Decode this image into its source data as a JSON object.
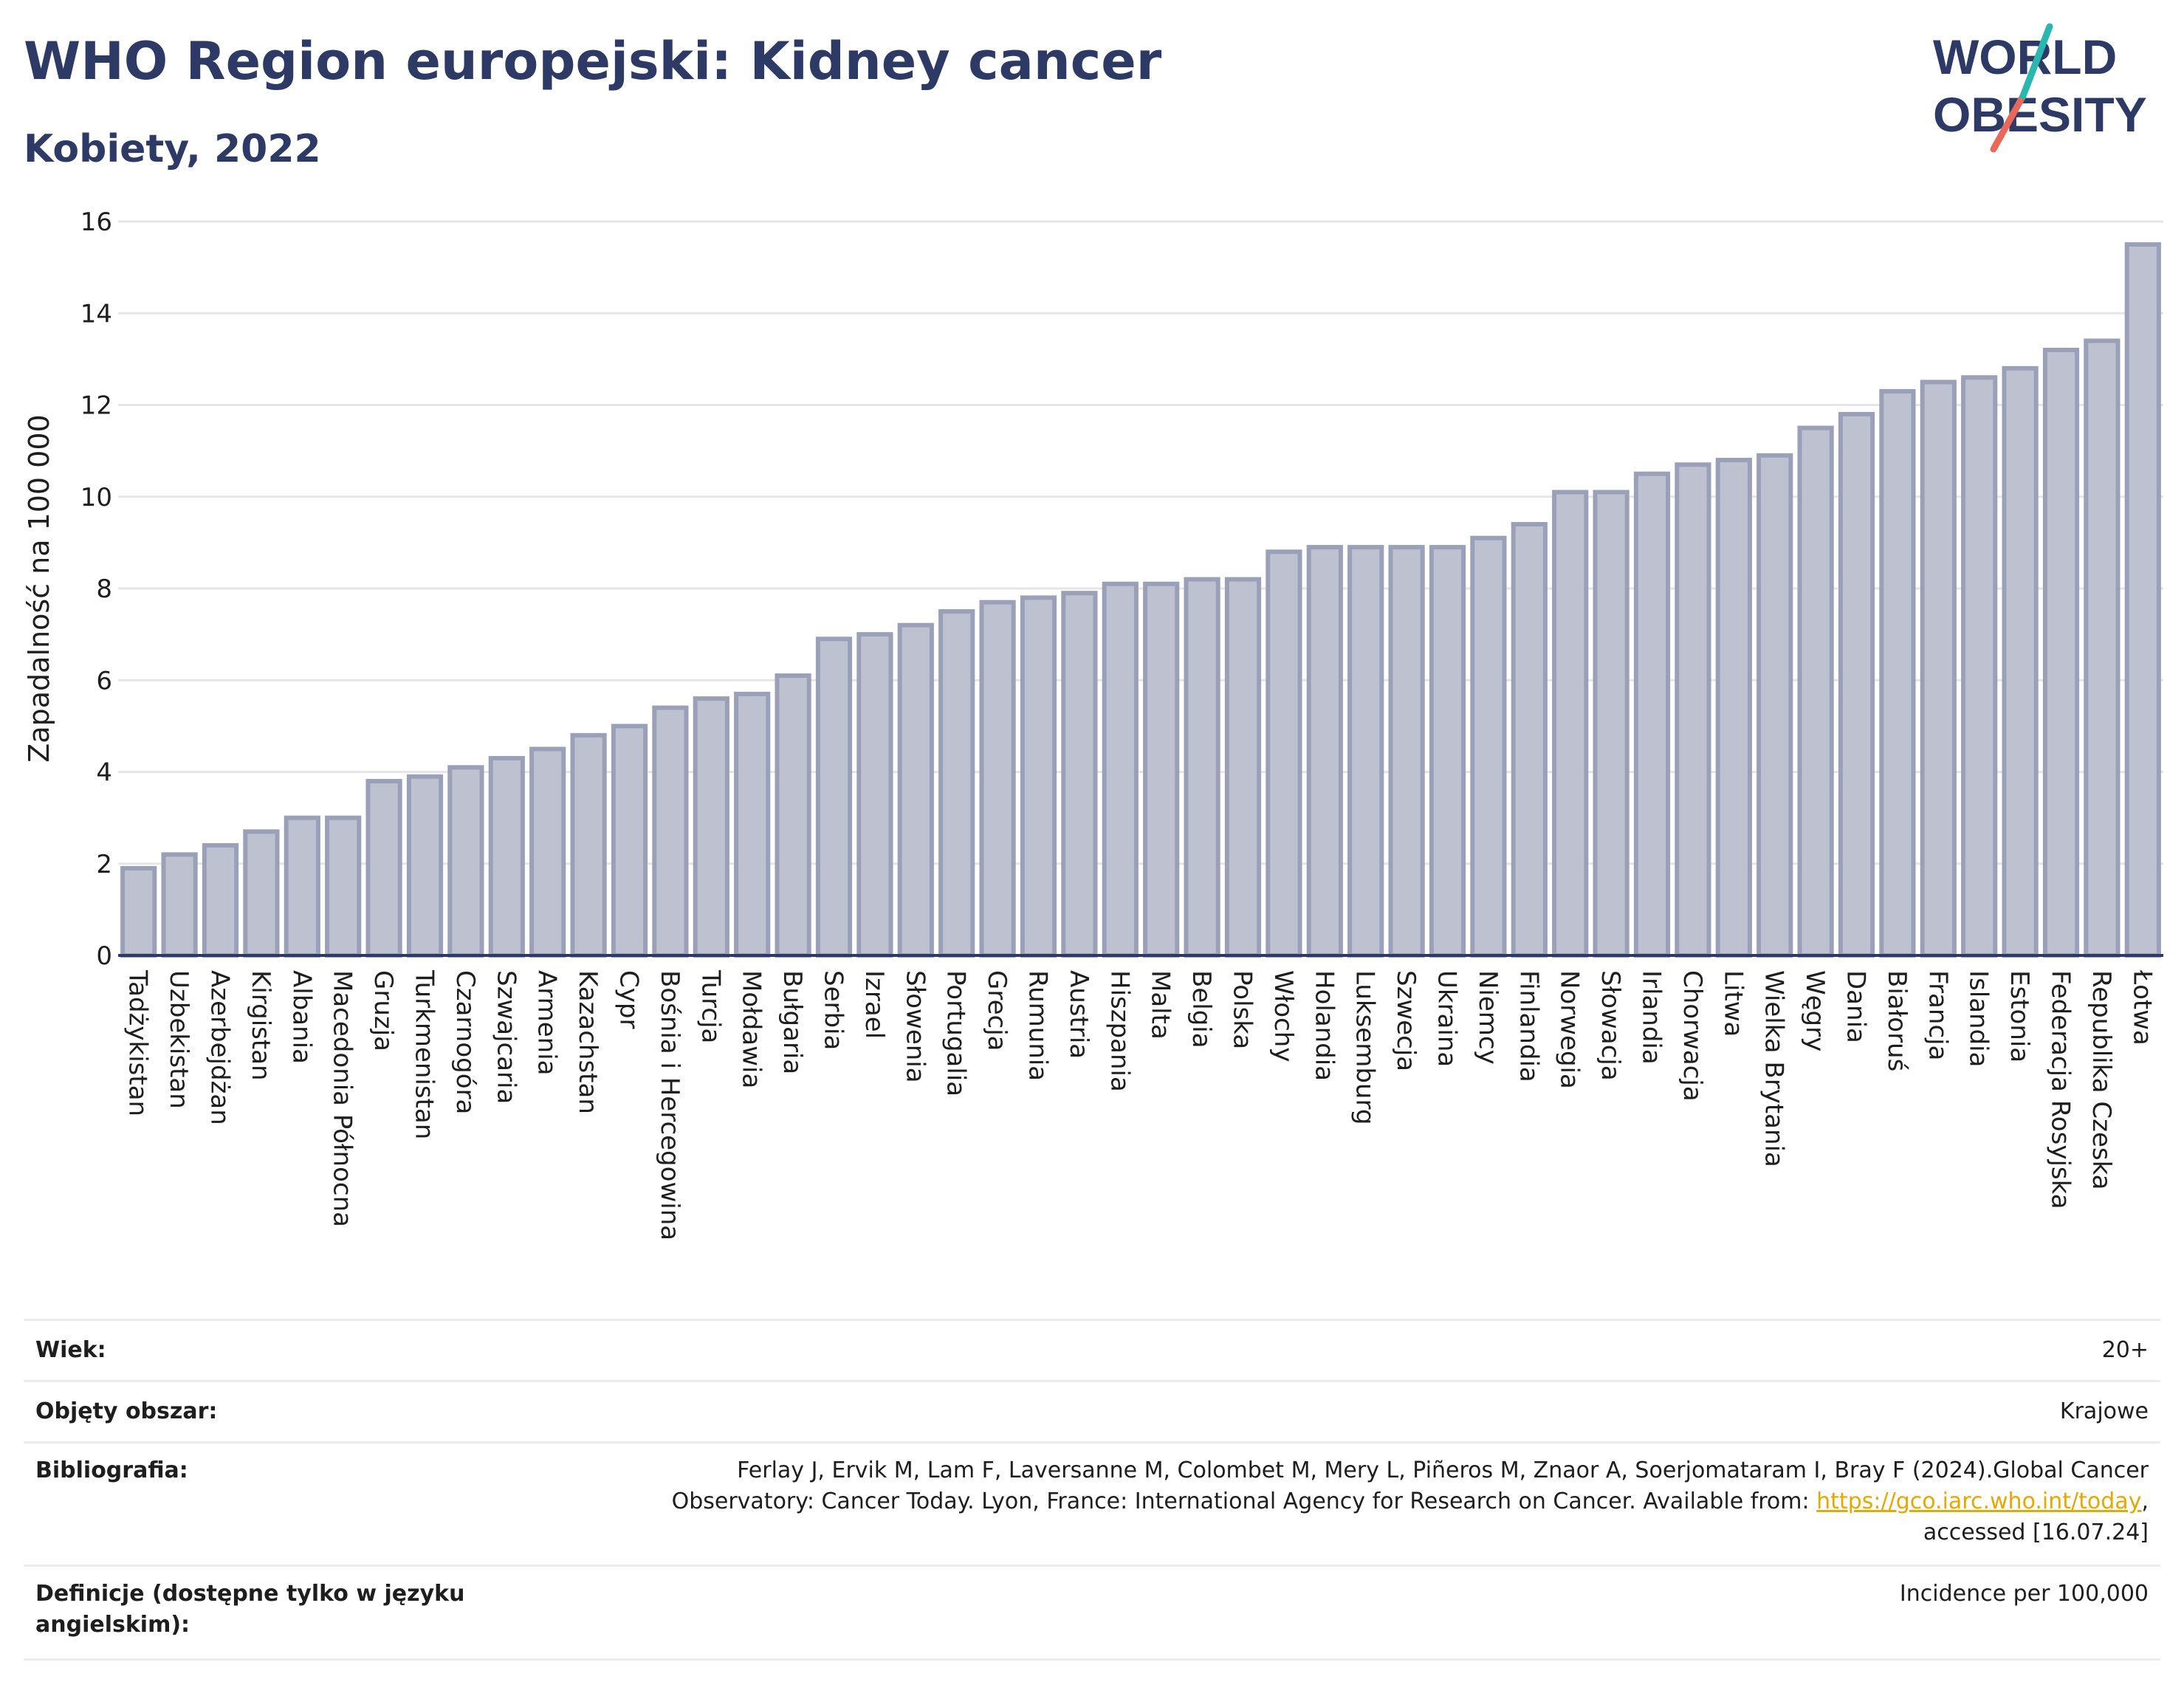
{
  "header": {
    "title": "WHO Region europejski: Kidney cancer",
    "subtitle": "Kobiety, 2022"
  },
  "logo": {
    "line1": "WORLD",
    "line2": "OBESITY"
  },
  "colors": {
    "title": "#2e3a66",
    "bar_fill": "#bec2d0",
    "bar_stroke": "#9aa0b8",
    "axis": "#2e3a66",
    "link": "#e8a800",
    "logo_teal": "#2ab7b0",
    "logo_red": "#e8685a"
  },
  "chart_data": {
    "type": "bar",
    "ylabel": "Zapadalność na 100 000",
    "xlabel": "",
    "ylim": [
      0,
      16
    ],
    "yticks": [
      0,
      2,
      4,
      6,
      8,
      10,
      12,
      14,
      16
    ],
    "grid": true,
    "categories": [
      "Tadżykistan",
      "Uzbekistan",
      "Azerbejdżan",
      "Kirgistan",
      "Albania",
      "Macedonia Północna",
      "Gruzja",
      "Turkmenistan",
      "Czarnogóra",
      "Szwajcaria",
      "Armenia",
      "Kazachstan",
      "Cypr",
      "Bośnia i Hercegowina",
      "Turcja",
      "Mołdawia",
      "Bułgaria",
      "Serbia",
      "Izrael",
      "Słowenia",
      "Portugalia",
      "Grecja",
      "Rumunia",
      "Austria",
      "Hiszpania",
      "Malta",
      "Belgia",
      "Polska",
      "Włochy",
      "Holandia",
      "Luksemburg",
      "Szwecja",
      "Ukraina",
      "Niemcy",
      "Finlandia",
      "Norwegia",
      "Słowacja",
      "Irlandia",
      "Chorwacja",
      "Litwa",
      "Wielka Brytania",
      "Węgry",
      "Dania",
      "Białoruś",
      "Francja",
      "Islandia",
      "Estonia",
      "Federacja Rosyjska",
      "Republika Czeska",
      "Łotwa"
    ],
    "values": [
      1.9,
      2.2,
      2.4,
      2.7,
      3.0,
      3.0,
      3.8,
      3.9,
      4.1,
      4.3,
      4.5,
      4.8,
      5.0,
      5.4,
      5.6,
      5.7,
      6.1,
      6.9,
      7.0,
      7.2,
      7.5,
      7.7,
      7.8,
      7.9,
      8.1,
      8.1,
      8.2,
      8.2,
      8.8,
      8.9,
      8.9,
      8.9,
      8.9,
      9.1,
      9.4,
      10.1,
      10.1,
      10.5,
      10.7,
      10.8,
      10.9,
      11.5,
      11.8,
      12.3,
      12.5,
      12.6,
      12.8,
      13.2,
      13.4,
      15.5
    ]
  },
  "meta": {
    "age_label": "Wiek:",
    "age_value": "20+",
    "area_label": "Objęty obszar:",
    "area_value": "Krajowe",
    "bib_label": "Bibliografia:",
    "bib_line1": "Ferlay J, Ervik M, Lam F, Laversanne M, Colombet M, Mery L, Piñeros M, Znaor A, Soerjomataram I, Bray F (2024).Global Cancer",
    "bib_line2_pre": "Observatory: Cancer Today. Lyon, France: International Agency for Research on Cancer. Available from: ",
    "bib_link": "https://gco.iarc.who.int/today",
    "bib_line2_post": ",",
    "bib_line3": "accessed [16.07.24]",
    "def_label_1": "Definicje (dostępne tylko w języku",
    "def_label_2": "angielskim):",
    "def_value": "Incidence per 100,000"
  }
}
